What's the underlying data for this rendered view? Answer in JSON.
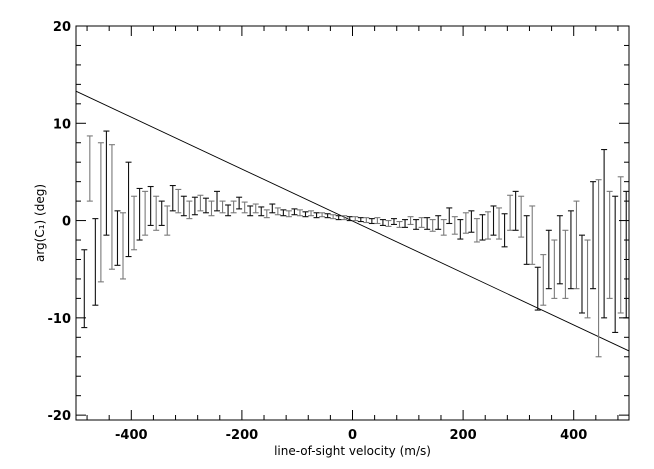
{
  "chart_data": {
    "type": "scatter",
    "xlabel": "line-of-sight velocity (m/s)",
    "ylabel": "arg(C₁) (deg)",
    "xlim": [
      -500,
      500
    ],
    "ylim": [
      -20.5,
      20
    ],
    "xticks": [
      -400,
      -200,
      0,
      200,
      400
    ],
    "yticks": [
      -20,
      -10,
      0,
      10,
      20
    ],
    "grid": false,
    "line": {
      "x": [
        -500,
        500
      ],
      "y": [
        13.3,
        -13.4
      ]
    },
    "errorbars": [
      {
        "x": -485,
        "y": -7.0,
        "lo": -11.0,
        "hi": -3.0
      },
      {
        "x": -475,
        "y": 5.0,
        "lo": 2.0,
        "hi": 8.7
      },
      {
        "x": -465,
        "y": -1.5,
        "lo": -8.7,
        "hi": 0.2
      },
      {
        "x": -455,
        "y": 2.0,
        "lo": -6.3,
        "hi": 8.0
      },
      {
        "x": -445,
        "y": 2.5,
        "lo": -1.5,
        "hi": 9.2
      },
      {
        "x": -435,
        "y": 1.0,
        "lo": -5.0,
        "hi": 7.8
      },
      {
        "x": -425,
        "y": -1.5,
        "lo": -4.6,
        "hi": 1.0
      },
      {
        "x": -415,
        "y": -2.0,
        "lo": -6.0,
        "hi": 0.8
      },
      {
        "x": -405,
        "y": 1.0,
        "lo": -3.7,
        "hi": 6.0
      },
      {
        "x": -395,
        "y": -1.0,
        "lo": -3.0,
        "hi": 2.5
      },
      {
        "x": -385,
        "y": 0.5,
        "lo": -2.0,
        "hi": 3.3
      },
      {
        "x": -375,
        "y": 0.0,
        "lo": -1.5,
        "hi": 3.0
      },
      {
        "x": -365,
        "y": 0.5,
        "lo": -0.5,
        "hi": 3.5
      },
      {
        "x": -355,
        "y": 0.5,
        "lo": -1.0,
        "hi": 2.5
      },
      {
        "x": -345,
        "y": 0.5,
        "lo": -0.5,
        "hi": 2.0
      },
      {
        "x": -335,
        "y": 0.0,
        "lo": -1.5,
        "hi": 1.5
      },
      {
        "x": -325,
        "y": 2.5,
        "lo": 1.0,
        "hi": 3.6
      },
      {
        "x": -315,
        "y": 2.0,
        "lo": 0.8,
        "hi": 3.2
      },
      {
        "x": -305,
        "y": 1.5,
        "lo": 0.5,
        "hi": 2.5
      },
      {
        "x": -295,
        "y": 1.0,
        "lo": 0.2,
        "hi": 2.0
      },
      {
        "x": -285,
        "y": 1.5,
        "lo": 0.6,
        "hi": 2.4
      },
      {
        "x": -275,
        "y": 1.8,
        "lo": 1.0,
        "hi": 2.6
      },
      {
        "x": -265,
        "y": 1.5,
        "lo": 0.8,
        "hi": 2.3
      },
      {
        "x": -255,
        "y": 1.2,
        "lo": 0.5,
        "hi": 2.0
      },
      {
        "x": -245,
        "y": 2.0,
        "lo": 1.0,
        "hi": 3.0
      },
      {
        "x": -235,
        "y": 1.3,
        "lo": 0.8,
        "hi": 2.0
      },
      {
        "x": -225,
        "y": 1.0,
        "lo": 0.5,
        "hi": 1.6
      },
      {
        "x": -215,
        "y": 1.4,
        "lo": 0.8,
        "hi": 2.0
      },
      {
        "x": -205,
        "y": 1.8,
        "lo": 1.2,
        "hi": 2.4
      },
      {
        "x": -195,
        "y": 1.3,
        "lo": 0.8,
        "hi": 1.9
      },
      {
        "x": -185,
        "y": 1.0,
        "lo": 0.5,
        "hi": 1.5
      },
      {
        "x": -175,
        "y": 1.2,
        "lo": 0.8,
        "hi": 1.7
      },
      {
        "x": -165,
        "y": 0.9,
        "lo": 0.5,
        "hi": 1.4
      },
      {
        "x": -155,
        "y": 0.7,
        "lo": 0.3,
        "hi": 1.1
      },
      {
        "x": -145,
        "y": 1.2,
        "lo": 0.8,
        "hi": 1.7
      },
      {
        "x": -135,
        "y": 0.9,
        "lo": 0.6,
        "hi": 1.3
      },
      {
        "x": -125,
        "y": 0.8,
        "lo": 0.5,
        "hi": 1.1
      },
      {
        "x": -115,
        "y": 0.7,
        "lo": 0.4,
        "hi": 1.0
      },
      {
        "x": -105,
        "y": 0.9,
        "lo": 0.6,
        "hi": 1.2
      },
      {
        "x": -95,
        "y": 0.8,
        "lo": 0.5,
        "hi": 1.1
      },
      {
        "x": -85,
        "y": 0.6,
        "lo": 0.4,
        "hi": 0.9
      },
      {
        "x": -75,
        "y": 0.7,
        "lo": 0.5,
        "hi": 1.0
      },
      {
        "x": -65,
        "y": 0.5,
        "lo": 0.3,
        "hi": 0.8
      },
      {
        "x": -55,
        "y": 0.6,
        "lo": 0.4,
        "hi": 0.8
      },
      {
        "x": -45,
        "y": 0.5,
        "lo": 0.3,
        "hi": 0.7
      },
      {
        "x": -35,
        "y": 0.4,
        "lo": 0.2,
        "hi": 0.6
      },
      {
        "x": -25,
        "y": 0.3,
        "lo": 0.1,
        "hi": 0.5
      },
      {
        "x": -15,
        "y": 0.3,
        "lo": 0.1,
        "hi": 0.5
      },
      {
        "x": -5,
        "y": 0.2,
        "lo": 0.0,
        "hi": 0.4
      },
      {
        "x": 5,
        "y": 0.2,
        "lo": 0.0,
        "hi": 0.4
      },
      {
        "x": 15,
        "y": 0.1,
        "lo": -0.1,
        "hi": 0.3
      },
      {
        "x": 25,
        "y": 0.0,
        "lo": -0.2,
        "hi": 0.3
      },
      {
        "x": 35,
        "y": -0.1,
        "lo": -0.3,
        "hi": 0.2
      },
      {
        "x": 45,
        "y": 0.0,
        "lo": -0.3,
        "hi": 0.3
      },
      {
        "x": 55,
        "y": -0.2,
        "lo": -0.5,
        "hi": 0.1
      },
      {
        "x": 65,
        "y": -0.3,
        "lo": -0.6,
        "hi": 0.0
      },
      {
        "x": 75,
        "y": -0.1,
        "lo": -0.4,
        "hi": 0.2
      },
      {
        "x": 85,
        "y": -0.4,
        "lo": -0.7,
        "hi": -0.1
      },
      {
        "x": 95,
        "y": -0.3,
        "lo": -0.7,
        "hi": 0.1
      },
      {
        "x": 105,
        "y": 0.0,
        "lo": -0.4,
        "hi": 0.4
      },
      {
        "x": 115,
        "y": -0.4,
        "lo": -0.9,
        "hi": 0.1
      },
      {
        "x": 125,
        "y": -0.2,
        "lo": -0.7,
        "hi": 0.3
      },
      {
        "x": 135,
        "y": -0.3,
        "lo": -0.9,
        "hi": 0.3
      },
      {
        "x": 145,
        "y": -0.5,
        "lo": -1.1,
        "hi": 0.1
      },
      {
        "x": 155,
        "y": -0.2,
        "lo": -0.9,
        "hi": 0.5
      },
      {
        "x": 165,
        "y": -0.7,
        "lo": -1.5,
        "hi": 0.1
      },
      {
        "x": 175,
        "y": 0.5,
        "lo": -0.3,
        "hi": 1.3
      },
      {
        "x": 185,
        "y": -0.5,
        "lo": -1.4,
        "hi": 0.4
      },
      {
        "x": 195,
        "y": -0.9,
        "lo": -1.9,
        "hi": 0.1
      },
      {
        "x": 205,
        "y": -0.3,
        "lo": -1.3,
        "hi": 0.8
      },
      {
        "x": 215,
        "y": -0.1,
        "lo": -1.2,
        "hi": 1.0
      },
      {
        "x": 225,
        "y": -1.0,
        "lo": -2.2,
        "hi": 0.2
      },
      {
        "x": 235,
        "y": -0.7,
        "lo": -2.0,
        "hi": 0.6
      },
      {
        "x": 245,
        "y": -0.5,
        "lo": -1.9,
        "hi": 0.9
      },
      {
        "x": 255,
        "y": 0.0,
        "lo": -1.5,
        "hi": 1.5
      },
      {
        "x": 265,
        "y": -0.3,
        "lo": -1.9,
        "hi": 1.3
      },
      {
        "x": 275,
        "y": -1.0,
        "lo": -2.7,
        "hi": 0.7
      },
      {
        "x": 285,
        "y": 0.8,
        "lo": -1.0,
        "hi": 2.6
      },
      {
        "x": 295,
        "y": 1.0,
        "lo": -1.0,
        "hi": 3.0
      },
      {
        "x": 305,
        "y": 0.5,
        "lo": -1.7,
        "hi": 2.5
      },
      {
        "x": 315,
        "y": -2.0,
        "lo": -4.5,
        "hi": 0.5
      },
      {
        "x": 325,
        "y": -2.0,
        "lo": -4.5,
        "hi": 1.5
      },
      {
        "x": 335,
        "y": -6.5,
        "lo": -9.2,
        "hi": -4.8
      },
      {
        "x": 345,
        "y": -6.0,
        "lo": -8.7,
        "hi": -3.5
      },
      {
        "x": 355,
        "y": -4.0,
        "lo": -7.0,
        "hi": -1.0
      },
      {
        "x": 365,
        "y": -5.0,
        "lo": -8.0,
        "hi": -2.0
      },
      {
        "x": 375,
        "y": -3.0,
        "lo": -6.5,
        "hi": 0.5
      },
      {
        "x": 385,
        "y": -4.5,
        "lo": -8.0,
        "hi": -1.0
      },
      {
        "x": 395,
        "y": -3.0,
        "lo": -7.0,
        "hi": 1.0
      },
      {
        "x": 405,
        "y": -2.5,
        "lo": -7.0,
        "hi": 2.0
      },
      {
        "x": 415,
        "y": -5.5,
        "lo": -9.5,
        "hi": -1.5
      },
      {
        "x": 425,
        "y": -6.0,
        "lo": -10.0,
        "hi": -2.0
      },
      {
        "x": 435,
        "y": -1.5,
        "lo": -7.0,
        "hi": 4.0
      },
      {
        "x": 445,
        "y": -5.0,
        "lo": -14.0,
        "hi": 4.2
      },
      {
        "x": 455,
        "y": -3.5,
        "lo": -10.0,
        "hi": 7.3
      },
      {
        "x": 465,
        "y": -2.0,
        "lo": -8.0,
        "hi": 3.0
      },
      {
        "x": 475,
        "y": -4.0,
        "lo": -11.5,
        "hi": 2.5
      },
      {
        "x": 485,
        "y": -3.0,
        "lo": -9.5,
        "hi": 4.5
      },
      {
        "x": 495,
        "y": -3.5,
        "lo": -10.0,
        "hi": 3.0
      }
    ]
  }
}
